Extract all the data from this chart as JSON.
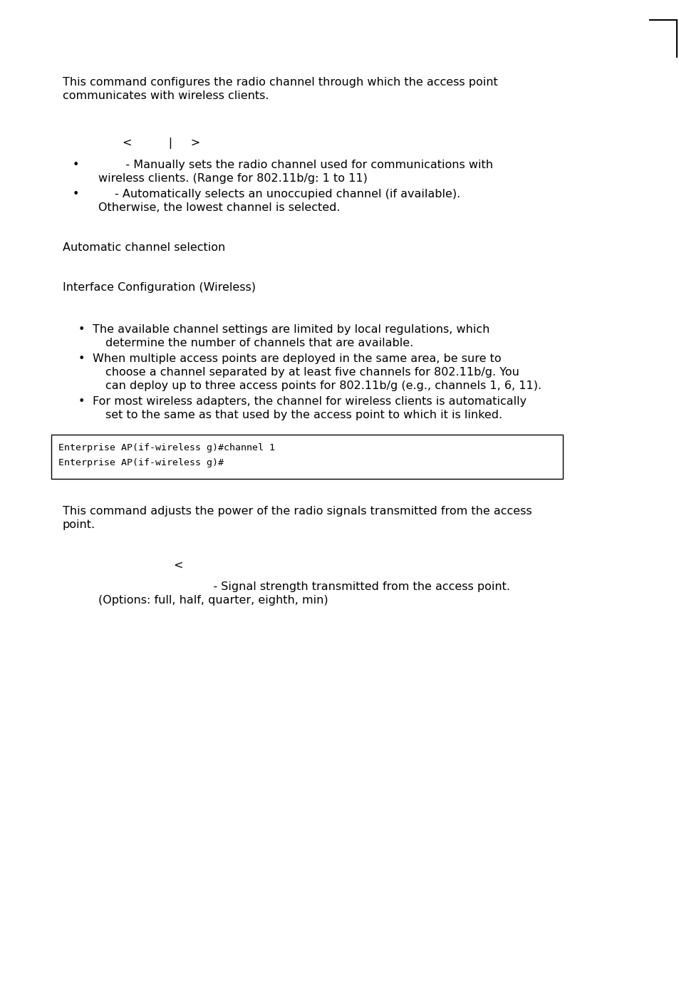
{
  "bg_color": "#ffffff",
  "text_color": "#000000",
  "para1_line1": "This command configures the radio channel through which the access point",
  "para1_line2": "communicates with wireless clients.",
  "syntax_line": "<          |     >",
  "bullet1_text1a": "           - Manually sets the radio channel used for communications with",
  "bullet1_text1b": "wireless clients. (Range for 802.11b/g: 1 to 11)",
  "bullet1_text2a": "        - Automatically selects an unoccupied channel (if available).",
  "bullet1_text2b": "Otherwise, the lowest channel is selected.",
  "default_label": "Automatic channel selection",
  "mode_label": "Interface Configuration (Wireless)",
  "note_b1a": "The available channel settings are limited by local regulations, which",
  "note_b1b": "determine the number of channels that are available.",
  "note_b2a": "When multiple access points are deployed in the same area, be sure to",
  "note_b2b": "choose a channel separated by at least five channels for 802.11b/g. You",
  "note_b2c": "can deploy up to three access points for 802.11b/g (e.g., channels 1, 6, 11).",
  "note_b3a": "For most wireless adapters, the channel for wireless clients is automatically",
  "note_b3b": "set to the same as that used by the access point to which it is linked.",
  "code_line1": "Enterprise AP(if-wireless g)#channel 1",
  "code_line2": "Enterprise AP(if-wireless g)#",
  "para2_line1": "This command adjusts the power of the radio signals transmitted from the access",
  "para2_line2": "point.",
  "syntax2": "<",
  "param_line1": "           - Signal strength transmitted from the access point.",
  "param_line2": "(Options: full, half, quarter, eighth, min)"
}
